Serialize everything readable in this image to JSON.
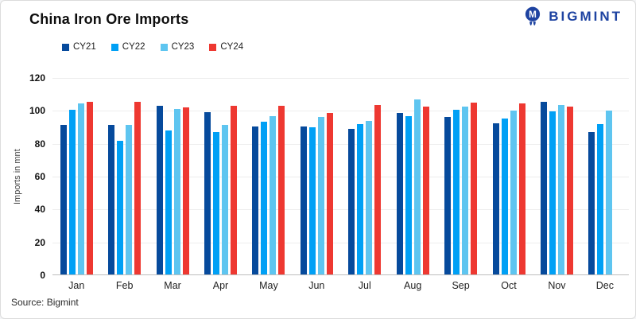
{
  "header": {
    "title": "China Iron Ore Imports",
    "brand": "BIGMINT"
  },
  "footer": {
    "source": "Source: Bigmint"
  },
  "colors": {
    "brand_navy": "#1e43a1",
    "gridline": "#ededed",
    "axis_line": "#bdbdbd",
    "cy21": "#064a9c",
    "cy22": "#00a0f5",
    "cy23": "#5ec5f0",
    "cy24": "#ee3831"
  },
  "chart_data": {
    "type": "bar",
    "title": "China Iron Ore Imports",
    "xlabel": "",
    "ylabel": "Imports in mnt",
    "ylim": [
      0,
      120
    ],
    "ytick_step": 20,
    "grid": true,
    "legend_position": "top-left",
    "categories": [
      "Jan",
      "Feb",
      "Mar",
      "Apr",
      "May",
      "Jun",
      "Jul",
      "Aug",
      "Sep",
      "Oct",
      "Nov",
      "Dec"
    ],
    "series": [
      {
        "name": "CY21",
        "color": "#064a9c",
        "values": [
          91,
          91,
          102.5,
          98.5,
          90,
          90,
          88.5,
          98,
          96,
          92,
          105,
          86.5
        ]
      },
      {
        "name": "CY22",
        "color": "#00a0f5",
        "values": [
          100,
          81.5,
          87.5,
          86.5,
          93,
          89.5,
          91.5,
          96.5,
          100,
          95,
          99,
          91.5
        ]
      },
      {
        "name": "CY23",
        "color": "#5ec5f0",
        "values": [
          104,
          91,
          100.5,
          91,
          96.5,
          96,
          93.5,
          106.5,
          102,
          99.5,
          103,
          99.5
        ]
      },
      {
        "name": "CY24",
        "color": "#ee3831",
        "values": [
          105,
          105,
          101.5,
          102.5,
          102.5,
          98,
          103,
          102,
          104.5,
          104,
          102,
          null
        ]
      }
    ]
  }
}
